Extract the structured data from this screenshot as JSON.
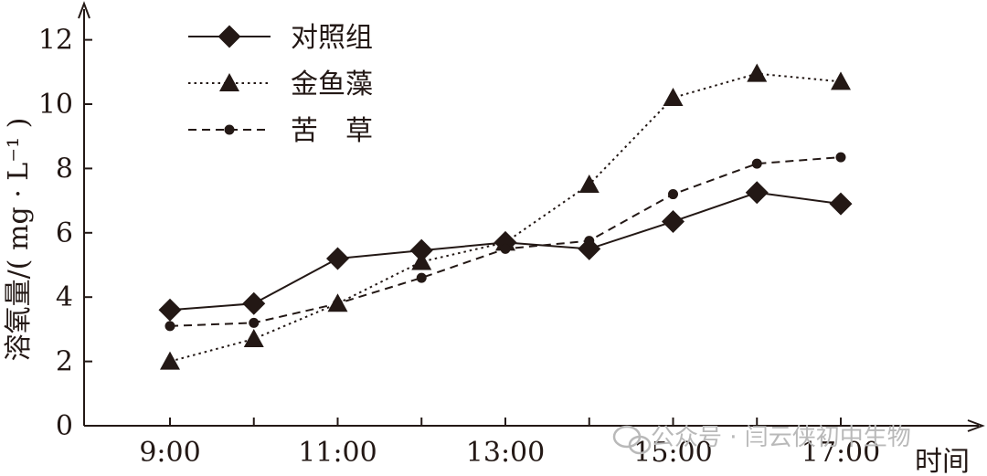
{
  "chart_data": {
    "type": "line",
    "ylabel": "溶氧量/( mg · L⁻¹ )",
    "xlabel": "时间",
    "x": [
      "9:00",
      "10:00",
      "11:00",
      "12:00",
      "13:00",
      "14:00",
      "15:00",
      "16:00",
      "17:00"
    ],
    "x_tick_labels": [
      "9:00",
      "11:00",
      "13:00",
      "15:00",
      "17:00"
    ],
    "y_ticks": [
      "0",
      "2",
      "4",
      "6",
      "8",
      "10",
      "12"
    ],
    "ylim": [
      0,
      13.2
    ],
    "series": [
      {
        "name": "对照组",
        "marker": "diamond",
        "line": "solid",
        "values": [
          3.6,
          3.8,
          5.2,
          5.45,
          5.7,
          5.5,
          6.35,
          7.25,
          6.9
        ]
      },
      {
        "name": "金鱼藻",
        "marker": "triangle",
        "line": "dotted",
        "values": [
          2.0,
          2.7,
          3.8,
          5.1,
          5.7,
          7.5,
          10.2,
          10.95,
          10.7
        ]
      },
      {
        "name": "苦　草",
        "marker": "circle",
        "line": "dashed",
        "values": [
          3.1,
          3.2,
          3.8,
          4.6,
          5.5,
          5.75,
          7.2,
          8.15,
          8.35
        ]
      }
    ],
    "legend_position": "top-left",
    "grid": false
  },
  "watermark": "公众号 · 闫云侠初中生物",
  "colors": {
    "ink": "#231815",
    "watermark": "#b9b9b9"
  }
}
